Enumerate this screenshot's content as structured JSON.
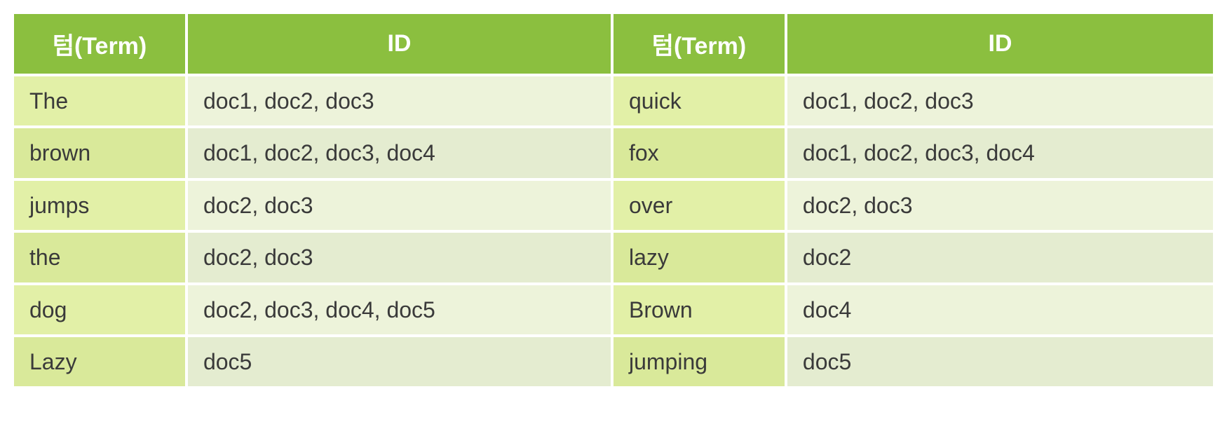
{
  "table": {
    "type": "table",
    "header_bg": "#8bbf3f",
    "header_fg": "#ffffff",
    "term_bg_odd": "#e2f0a7",
    "term_bg_even": "#d9e99a",
    "id_bg_odd": "#edf3da",
    "id_bg_even": "#e4ecd0",
    "text_color": "#3a3a3a",
    "header_fontsize": 34,
    "cell_fontsize": 32,
    "columns": [
      "텀(Term)",
      "ID",
      "텀(Term)",
      "ID"
    ],
    "col_widths_pct": [
      14.5,
      35.5,
      14.5,
      35.5
    ],
    "rows": [
      [
        "The",
        "doc1, doc2, doc3",
        "quick",
        "doc1, doc2, doc3"
      ],
      [
        "brown",
        "doc1, doc2, doc3, doc4",
        "fox",
        "doc1, doc2, doc3, doc4"
      ],
      [
        "jumps",
        "doc2, doc3",
        "over",
        "doc2, doc3"
      ],
      [
        "the",
        "doc2, doc3",
        "lazy",
        "doc2"
      ],
      [
        "dog",
        "doc2, doc3, doc4, doc5",
        "Brown",
        "doc4"
      ],
      [
        "Lazy",
        "doc5",
        "jumping",
        "doc5"
      ]
    ]
  }
}
